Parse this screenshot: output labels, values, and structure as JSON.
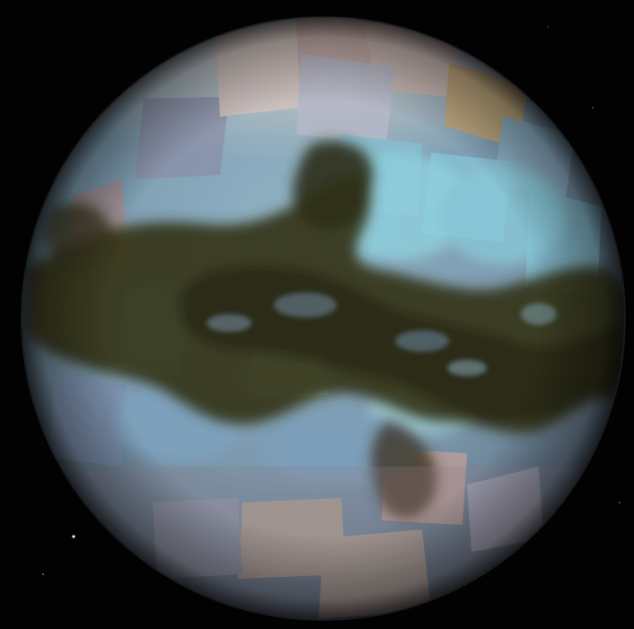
{
  "image": {
    "subject": "titan-infrared-mosaic",
    "background_color": "#020203"
  },
  "planet": {
    "palette": {
      "highlight": "#d8c9c2",
      "blue_bright": "#7fb6c6",
      "blue_mid": "#6d93ae",
      "dune_dark": "#2f2e15",
      "dune_mid": "#4a4520",
      "rim": "#3c3d45",
      "tan": "#b69c8a"
    }
  },
  "credit": {
    "text": ""
  }
}
